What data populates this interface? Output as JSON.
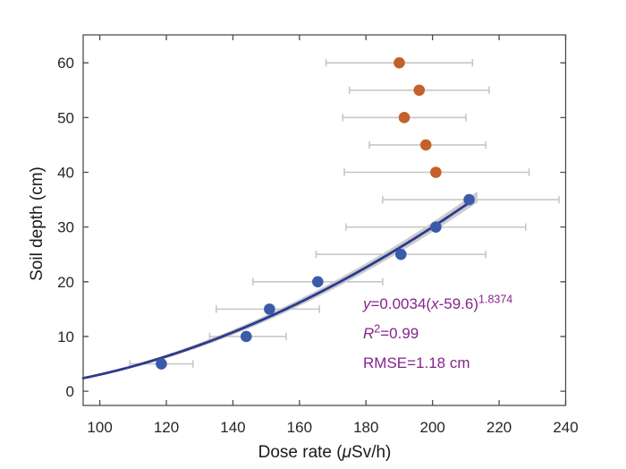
{
  "chart_data": {
    "type": "scatter",
    "title": "",
    "xlabel": "Dose rate (μSv/h)",
    "xlabel_parts": {
      "pre": "Dose rate (",
      "mu": "μ",
      "post": "Sv/h)"
    },
    "ylabel": "Soil depth (cm)",
    "xlim": [
      95,
      240
    ],
    "ylim": [
      -2.6,
      65.1
    ],
    "xticks": [
      100,
      120,
      140,
      160,
      180,
      200,
      220,
      240
    ],
    "yticks": [
      0,
      10,
      20,
      30,
      40,
      50,
      60
    ],
    "grid": false,
    "legend": "none",
    "series": [
      {
        "name": "fitted-points-blue",
        "color": "#3A5BA9",
        "points": [
          {
            "depth_cm": 5,
            "dose": 118.5,
            "dose_min": 109,
            "dose_max": 128
          },
          {
            "depth_cm": 10,
            "dose": 144,
            "dose_min": 133,
            "dose_max": 156
          },
          {
            "depth_cm": 15,
            "dose": 151,
            "dose_min": 135,
            "dose_max": 166
          },
          {
            "depth_cm": 20,
            "dose": 165.5,
            "dose_min": 146,
            "dose_max": 185
          },
          {
            "depth_cm": 25,
            "dose": 190.5,
            "dose_min": 165,
            "dose_max": 216
          },
          {
            "depth_cm": 30,
            "dose": 201,
            "dose_min": 174,
            "dose_max": 228
          },
          {
            "depth_cm": 35,
            "dose": 211,
            "dose_min": 185,
            "dose_max": 238
          }
        ]
      },
      {
        "name": "excluded-points-orange",
        "color": "#C4602B",
        "points": [
          {
            "depth_cm": 40,
            "dose": 201,
            "dose_min": 173.5,
            "dose_max": 229
          },
          {
            "depth_cm": 45,
            "dose": 198,
            "dose_min": 181,
            "dose_max": 216
          },
          {
            "depth_cm": 50,
            "dose": 191.5,
            "dose_min": 173,
            "dose_max": 210
          },
          {
            "depth_cm": 55,
            "dose": 196,
            "dose_min": 175,
            "dose_max": 217
          },
          {
            "depth_cm": 60,
            "dose": 190,
            "dose_min": 168,
            "dose_max": 212
          }
        ]
      }
    ],
    "fit_curve": {
      "formula": "y = 0.0034*(x-59.6)^1.8374",
      "a": 0.0034,
      "x0": 59.6,
      "b": 1.8374,
      "x_start": 95,
      "x_end": 212,
      "color": "#2B3A8F",
      "band_color": "#C6C6C6",
      "band_x_end": 214.5,
      "band_halfwidth_cm_start": 0.15,
      "band_halfwidth_cm_end": 1.0
    },
    "errorbar_color": "#C7C7C7"
  },
  "annotation": {
    "color": "#86248C",
    "eq": {
      "y_var": "y",
      "mid": "=0.0034(",
      "x_var": "x",
      "close": "-59.6)",
      "exponent": "1.8374"
    },
    "r2": {
      "symbol": "R",
      "sup": "2",
      "value": "=0.99"
    },
    "rmse": "RMSE=1.18 cm"
  },
  "axis": {
    "color": "#4D4D4D",
    "tick_label_color": "#262626"
  }
}
